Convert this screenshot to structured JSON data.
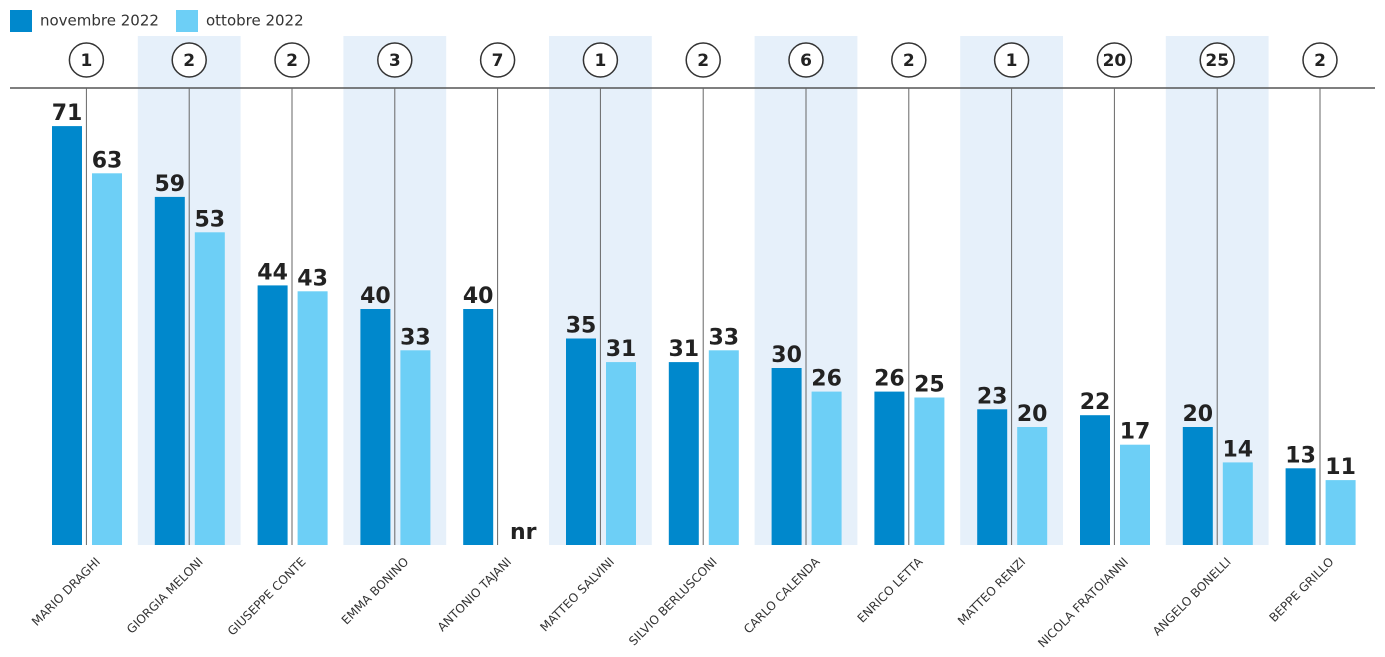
{
  "chart_data": {
    "type": "bar",
    "categories": [
      "MARIO DRAGHI",
      "GIORGIA MELONI",
      "GIUSEPPE CONTE",
      "EMMA BONINO",
      "ANTONIO TAJANI",
      "MATTEO SALVINI",
      "SILVIO BERLUSCONI",
      "CARLO CALENDA",
      "ENRICO LETTA",
      "MATTEO RENZI",
      "NICOLA FRATOIANNI",
      "ANGELO BONELLI",
      "BEPPE GRILLO"
    ],
    "rank_labels": [
      1,
      2,
      2,
      3,
      7,
      1,
      2,
      6,
      2,
      1,
      20,
      25,
      2
    ],
    "series": [
      {
        "name": "novembre 2022",
        "color": "#0088cc",
        "values": [
          71,
          59,
          44,
          40,
          40,
          35,
          31,
          30,
          26,
          23,
          22,
          20,
          13
        ]
      },
      {
        "name": "ottobre 2022",
        "color": "#6dcff6",
        "values": [
          63,
          53,
          43,
          33,
          null,
          31,
          33,
          26,
          25,
          20,
          17,
          14,
          11
        ],
        "value_labels": [
          "63",
          "53",
          "43",
          "33",
          "nr",
          "31",
          "33",
          "26",
          "25",
          "20",
          "17",
          "14",
          "11"
        ]
      }
    ],
    "ylim": [
      0,
      80
    ],
    "legend": "top-left"
  }
}
